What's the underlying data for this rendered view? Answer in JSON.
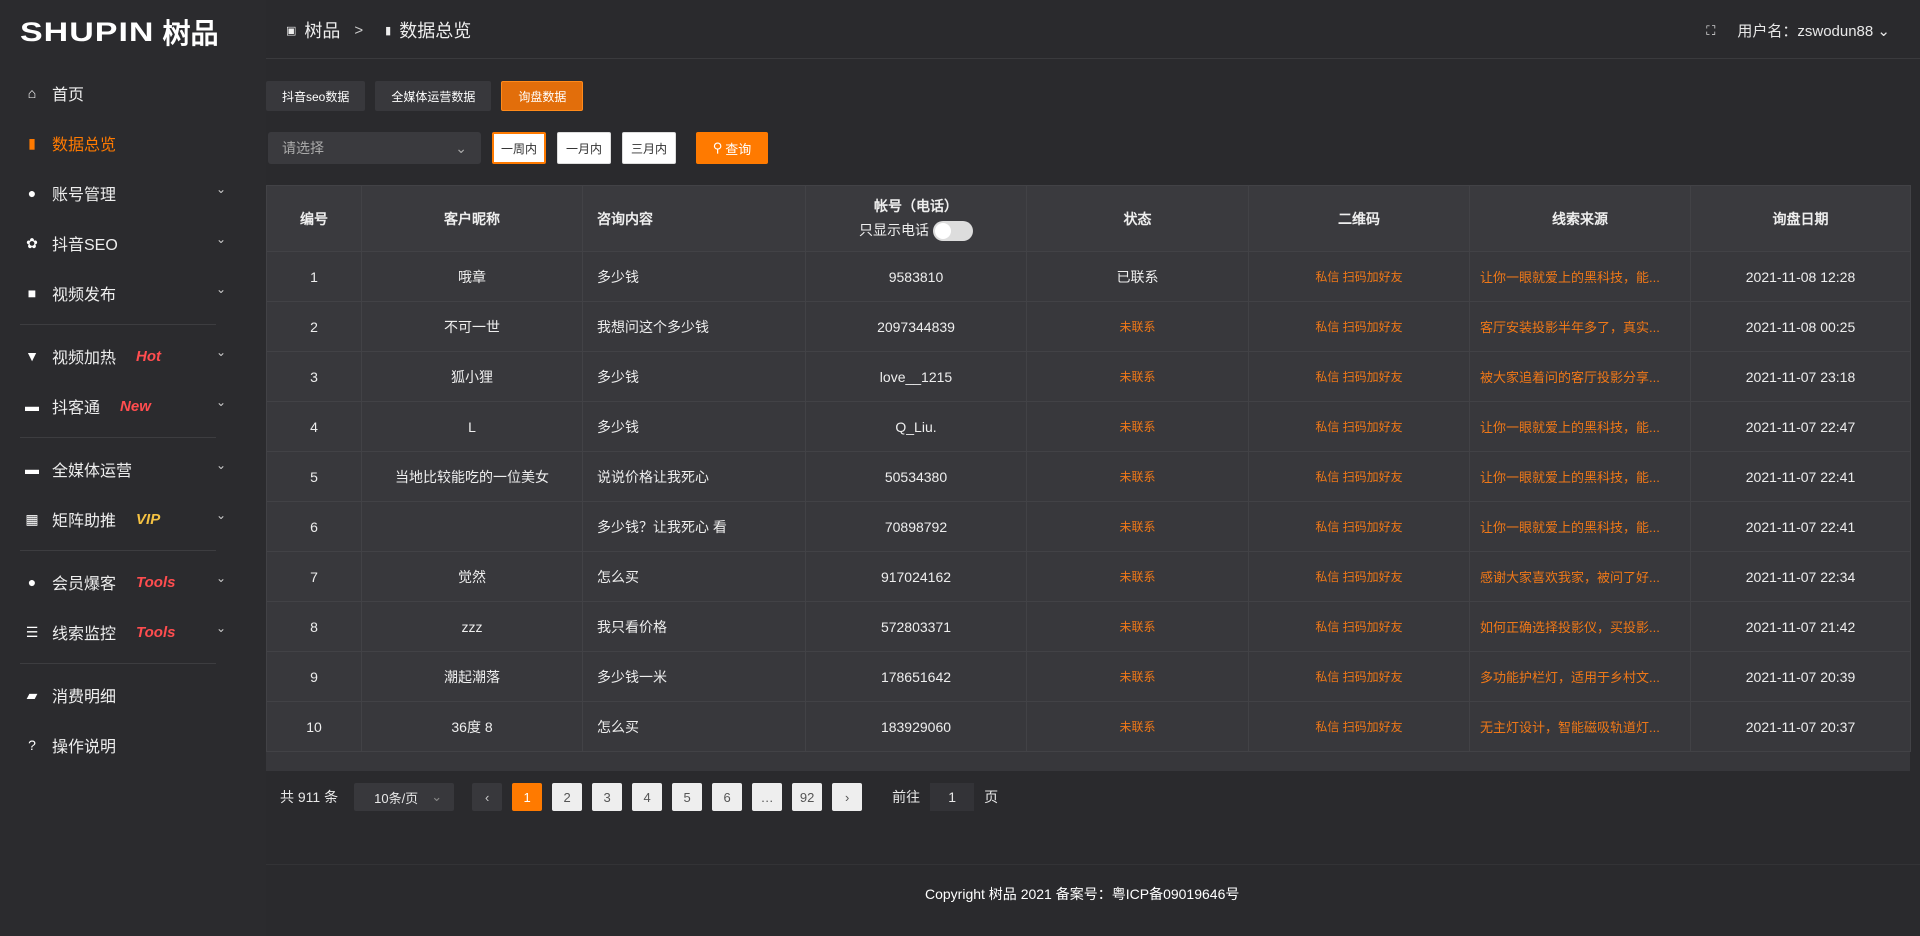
{
  "logo": {
    "en": "SHUPIN",
    "cn": "树品"
  },
  "sidebar": {
    "items": [
      {
        "label": "首页",
        "icon": "home-icon",
        "glyph": "⌂"
      },
      {
        "label": "数据总览",
        "icon": "bar-chart-icon",
        "glyph": "▮",
        "active": true
      },
      {
        "label": "账号管理",
        "icon": "user-icon",
        "glyph": "●",
        "chevron": true
      },
      {
        "label": "抖音SEO",
        "icon": "gear-icon",
        "glyph": "✿",
        "chevron": true
      },
      {
        "label": "视频发布",
        "icon": "camera-icon",
        "glyph": "■",
        "chevron": true
      },
      {
        "label": "视频加热",
        "icon": "monitor-icon",
        "glyph": "▼",
        "badge": "Hot",
        "badge_color": "#ff4d4f",
        "chevron": true
      },
      {
        "label": "抖客通",
        "icon": "chat-icon",
        "glyph": "▬",
        "badge": "New",
        "badge_color": "#ff4d4f",
        "chevron": true
      },
      {
        "label": "全媒体运营",
        "icon": "desktop-icon",
        "glyph": "▬",
        "chevron": true
      },
      {
        "label": "矩阵助推",
        "icon": "grid-icon",
        "glyph": "▦",
        "badge": "VIP",
        "badge_color": "#f5c242",
        "chevron": true
      },
      {
        "label": "会员爆客",
        "icon": "member-icon",
        "glyph": "●",
        "badge": "Tools",
        "badge_color": "#ff4d4f",
        "chevron": true
      },
      {
        "label": "线索监控",
        "icon": "sliders-icon",
        "glyph": "☰",
        "badge": "Tools",
        "badge_color": "#ff4d4f",
        "chevron": true
      },
      {
        "label": "消费明细",
        "icon": "wallet-icon",
        "glyph": "▰"
      },
      {
        "label": "操作说明",
        "icon": "help-icon",
        "glyph": "?"
      }
    ]
  },
  "header": {
    "breadcrumb": [
      "树品",
      "数据总览"
    ],
    "sep": ">",
    "user_label": "用户名：zswodun88"
  },
  "tabs": [
    {
      "label": "抖音seo数据"
    },
    {
      "label": "全媒体运营数据"
    },
    {
      "label": "询盘数据",
      "active": true
    }
  ],
  "filters": {
    "select_placeholder": "请选择",
    "ranges": [
      "一周内",
      "一月内",
      "三月内"
    ],
    "selected_range": "一周内",
    "query_label": "查询"
  },
  "table": {
    "headers": [
      "编号",
      "客户昵称",
      "咨询内容",
      "帐号（电话）",
      "状态",
      "二维码",
      "线索来源",
      "询盘日期"
    ],
    "phone_toggle_label": "只显示电话",
    "phone_toggle_on": false,
    "rows": [
      [
        "1",
        "哦章",
        "多少钱",
        "9583810",
        "已联系",
        "私信 扫码加好友",
        "让你一眼就爱上的黑科技，能...",
        "2021-11-08 12:28"
      ],
      [
        "2",
        "不可一世",
        "我想问这个多少钱",
        "2097344839",
        "未联系",
        "私信 扫码加好友",
        "客厅安装投影半年多了，真实...",
        "2021-11-08 00:25"
      ],
      [
        "3",
        "狐小狸",
        "多少钱",
        "love__1215",
        "未联系",
        "私信 扫码加好友",
        "被大家追着问的客厅投影分享...",
        "2021-11-07 23:18"
      ],
      [
        "4",
        "L",
        "多少钱",
        "Q_Liu.",
        "未联系",
        "私信 扫码加好友",
        "让你一眼就爱上的黑科技，能...",
        "2021-11-07 22:47"
      ],
      [
        "5",
        "当地比较能吃的一位美女",
        "说说价格让我死心",
        "50534380",
        "未联系",
        "私信 扫码加好友",
        "让你一眼就爱上的黑科技，能...",
        "2021-11-07 22:41"
      ],
      [
        "6",
        "",
        "多少钱？让我死心 看",
        "70898792",
        "未联系",
        "私信 扫码加好友",
        "让你一眼就爱上的黑科技，能...",
        "2021-11-07 22:41"
      ],
      [
        "7",
        "觉然",
        "怎么买",
        "917024162",
        "未联系",
        "私信 扫码加好友",
        "感谢大家喜欢我家，被问了好...",
        "2021-11-07 22:34"
      ],
      [
        "8",
        "zzz",
        "我只看价格",
        "572803371",
        "未联系",
        "私信 扫码加好友",
        "如何正确选择投影仪，买投影...",
        "2021-11-07 21:42"
      ],
      [
        "9",
        "潮起潮落",
        "多少钱一米",
        "178651642",
        "未联系",
        "私信 扫码加好友",
        "多功能护栏灯，适用于乡村文...",
        "2021-11-07 20:39"
      ],
      [
        "10",
        "36度 8",
        "怎么买",
        "183929060",
        "未联系",
        "私信 扫码加好友",
        "无主灯设计，智能磁吸轨道灯...",
        "2021-11-07 20:37"
      ]
    ]
  },
  "pagination": {
    "total": "共 911 条",
    "page_size": "10条/页",
    "pages": [
      "1",
      "2",
      "3",
      "4",
      "5",
      "6",
      "…",
      "92"
    ],
    "current": "1",
    "goto_prefix": "前往",
    "goto_value": "1",
    "goto_suffix": "页"
  },
  "footer": {
    "text": "Copyright 树品 2021 备案号：粤ICP备09019646号"
  },
  "colors": {
    "accent": "#ff7a00",
    "background": "#2a2a2d",
    "table": "#38383c"
  }
}
